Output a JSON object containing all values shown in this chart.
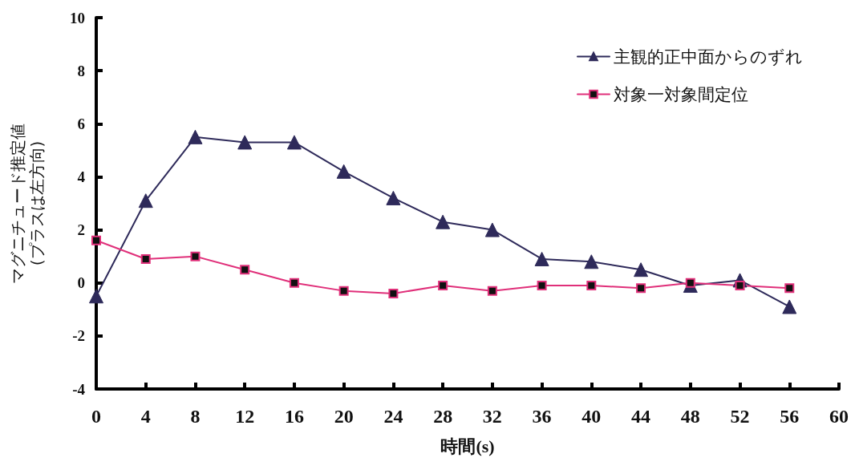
{
  "chart_data": {
    "type": "line",
    "xlabel": "時間(s)",
    "ylabel": "マグニチュード推定値\n(プラスは左方向)",
    "x": [
      0,
      4,
      8,
      12,
      16,
      20,
      24,
      28,
      32,
      36,
      40,
      44,
      48,
      52,
      56
    ],
    "xlim": [
      0,
      60
    ],
    "xticks": [
      0,
      4,
      8,
      12,
      16,
      20,
      24,
      28,
      32,
      36,
      40,
      44,
      48,
      52,
      56,
      60
    ],
    "ylim": [
      -4,
      10
    ],
    "yticks": [
      -4,
      -2,
      0,
      2,
      4,
      6,
      8,
      10
    ],
    "legend": "top right",
    "line_style": "solid",
    "series": [
      {
        "name": "主観的正中面からのずれ",
        "color": "#2e2a5a",
        "marker": "triangle",
        "values": [
          -0.5,
          3.1,
          5.5,
          5.3,
          5.3,
          4.2,
          3.2,
          2.3,
          2.0,
          0.9,
          0.8,
          0.5,
          -0.1,
          0.1,
          -0.9
        ]
      },
      {
        "name": "対象一対象間定位",
        "color": "#e0307a",
        "marker": "square",
        "values": [
          1.6,
          0.9,
          1.0,
          0.5,
          0.0,
          -0.3,
          -0.4,
          -0.1,
          -0.3,
          -0.1,
          -0.1,
          -0.2,
          0.0,
          -0.1,
          -0.2
        ]
      }
    ]
  }
}
